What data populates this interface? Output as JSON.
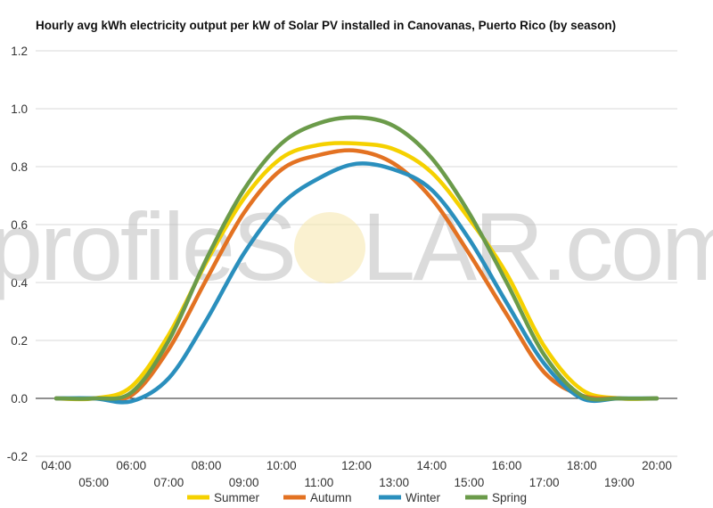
{
  "chart_data": {
    "type": "line",
    "title": "Hourly avg kWh electricity output per kW of Solar PV installed in Canovanas, Puerto Rico (by season)",
    "xlabel": "",
    "ylabel": "",
    "x": [
      "04:00",
      "05:00",
      "06:00",
      "07:00",
      "08:00",
      "09:00",
      "10:00",
      "11:00",
      "12:00",
      "13:00",
      "14:00",
      "15:00",
      "16:00",
      "17:00",
      "18:00",
      "19:00",
      "20:00"
    ],
    "x_tick_labels_upper": [
      "04:00",
      "06:00",
      "08:00",
      "10:00",
      "12:00",
      "14:00",
      "16:00",
      "18:00",
      "20:00"
    ],
    "x_tick_labels_lower": [
      "05:00",
      "07:00",
      "09:00",
      "11:00",
      "13:00",
      "15:00",
      "17:00",
      "19:00"
    ],
    "y_tick_labels": [
      "1.2",
      "1.0",
      "0.8",
      "0.6",
      "0.4",
      "0.2",
      "0.0",
      "-0.2"
    ],
    "ylim": [
      -0.2,
      1.2
    ],
    "grid": true,
    "legend_position": "bottom",
    "series": [
      {
        "name": "Summer",
        "color": "#f5d100",
        "values": [
          0.0,
          0.0,
          0.04,
          0.22,
          0.47,
          0.69,
          0.83,
          0.875,
          0.88,
          0.86,
          0.78,
          0.62,
          0.43,
          0.18,
          0.03,
          0.0,
          0.0
        ]
      },
      {
        "name": "Autumn",
        "color": "#e37222",
        "values": [
          0.0,
          0.0,
          0.01,
          0.17,
          0.41,
          0.64,
          0.79,
          0.84,
          0.855,
          0.81,
          0.69,
          0.5,
          0.29,
          0.09,
          0.01,
          0.0,
          0.0
        ]
      },
      {
        "name": "Winter",
        "color": "#2a8fbd",
        "values": [
          0.0,
          0.0,
          -0.01,
          0.07,
          0.27,
          0.5,
          0.67,
          0.76,
          0.81,
          0.79,
          0.72,
          0.55,
          0.33,
          0.12,
          0.0,
          0.0,
          0.0
        ]
      },
      {
        "name": "Spring",
        "color": "#6b9b4a",
        "values": [
          0.0,
          0.0,
          0.02,
          0.2,
          0.48,
          0.72,
          0.88,
          0.95,
          0.97,
          0.94,
          0.83,
          0.64,
          0.4,
          0.15,
          0.01,
          0.0,
          0.0
        ]
      }
    ]
  },
  "watermark": {
    "text_left": "profileS",
    "text_right": "LAR.com",
    "sun_color": "#f6e7b0"
  }
}
